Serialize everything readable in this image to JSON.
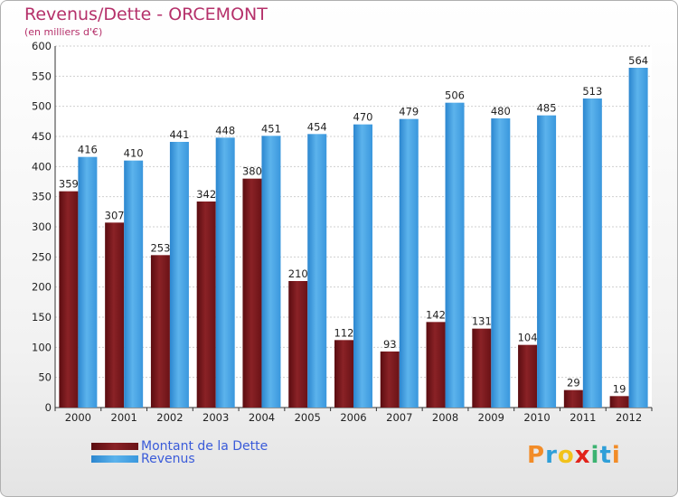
{
  "header": {
    "title": "Revenus/Dette - ORCEMONT",
    "subtitle": "(en milliers d'€)"
  },
  "logo": {
    "letters": [
      "P",
      "r",
      "o",
      "x",
      "i",
      "t",
      "i"
    ],
    "colors": [
      "#f28c28",
      "#2f9fd8",
      "#f2c21b",
      "#e2231a",
      "#3cb371",
      "#2f9fd8",
      "#f28c28"
    ]
  },
  "chart_data": {
    "type": "bar",
    "title": "Revenus/Dette - ORCEMONT",
    "ylabel": "(en milliers d'€)",
    "xlabel": "",
    "ylim": [
      0,
      600
    ],
    "yticks": [
      0,
      50,
      100,
      150,
      200,
      250,
      300,
      350,
      400,
      450,
      500,
      550,
      600
    ],
    "grid": true,
    "legend": "bottom-left",
    "categories": [
      "2000",
      "2001",
      "2002",
      "2003",
      "2004",
      "2005",
      "2006",
      "2007",
      "2008",
      "2009",
      "2010",
      "2011",
      "2012"
    ],
    "series": [
      {
        "name": "Montant de la Dette",
        "color": "#7a1a1e",
        "values": [
          359,
          307,
          253,
          342,
          380,
          210,
          112,
          93,
          142,
          131,
          104,
          29,
          19
        ]
      },
      {
        "name": "Revenus",
        "color": "#3a97dd",
        "values": [
          416,
          410,
          441,
          448,
          451,
          454,
          470,
          479,
          506,
          480,
          485,
          513,
          564
        ]
      }
    ]
  }
}
